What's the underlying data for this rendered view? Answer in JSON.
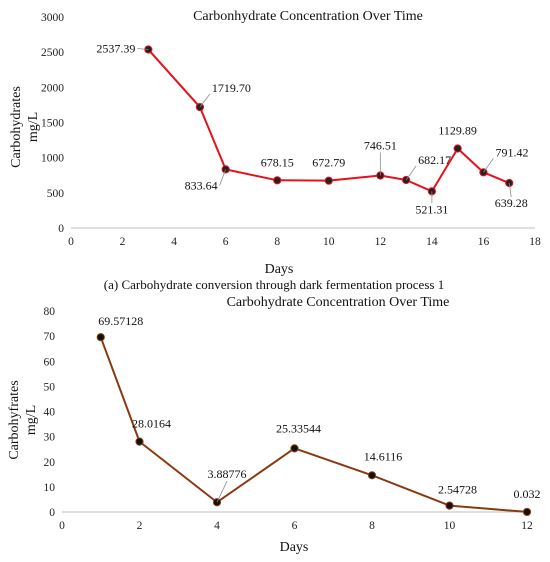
{
  "chart_data": [
    {
      "type": "line",
      "title": "Carbonhydrate Concentration Over Time",
      "xlabel": "Days",
      "ylabel_lines": [
        "Carbohydrates",
        "mg/L"
      ],
      "caption": "(a) Carbohydrate conversion through dark fermentation process 1",
      "xlim": [
        0,
        18
      ],
      "ylim": [
        0,
        3000
      ],
      "x_ticks": [
        "0",
        "2",
        "4",
        "6",
        "8",
        "10",
        "12",
        "14",
        "16",
        "18"
      ],
      "y_ticks": [
        "0",
        "500",
        "1000",
        "1500",
        "2000",
        "2500",
        "3000"
      ],
      "grid": false,
      "series_color": "#e8101a",
      "marker_color": "#222222",
      "series": [
        {
          "x": [
            3,
            5,
            6,
            8,
            10,
            12,
            13,
            14,
            15,
            16,
            17
          ],
          "y": [
            2537.39,
            1719.7,
            833.64,
            678.15,
            672.79,
            746.51,
            682.17,
            521.31,
            1129.89,
            791.42,
            639.28
          ]
        }
      ],
      "data_labels": [
        "2537.39",
        "1719.70",
        "833.64",
        "678.15",
        "672.79",
        "746.51",
        "682.17",
        "521.31",
        "1129.89",
        "791.42",
        "639.28"
      ]
    },
    {
      "type": "line",
      "title": "Carbohydrate Concentration Over Time",
      "xlabel": "Days",
      "ylabel_lines": [
        "Carbohyfrates",
        "mg/L"
      ],
      "xlim": [
        0,
        12
      ],
      "ylim": [
        0,
        80
      ],
      "x_ticks": [
        "0",
        "2",
        "4",
        "6",
        "8",
        "10",
        "12"
      ],
      "y_ticks": [
        "0",
        "10",
        "20",
        "30",
        "40",
        "50",
        "60",
        "70",
        "80"
      ],
      "grid": false,
      "series_color": "#8a3a12",
      "marker_color": "#111111",
      "series": [
        {
          "x": [
            1,
            2,
            4,
            6,
            8,
            10,
            12
          ],
          "y": [
            69.57128,
            28.0164,
            3.88776,
            25.33544,
            14.6116,
            2.54728,
            0.032
          ]
        }
      ],
      "data_labels": [
        "69.57128",
        "28.0164",
        "3.88776",
        "25.33544",
        "14.6116",
        "2.54728",
        "0.032"
      ]
    }
  ]
}
